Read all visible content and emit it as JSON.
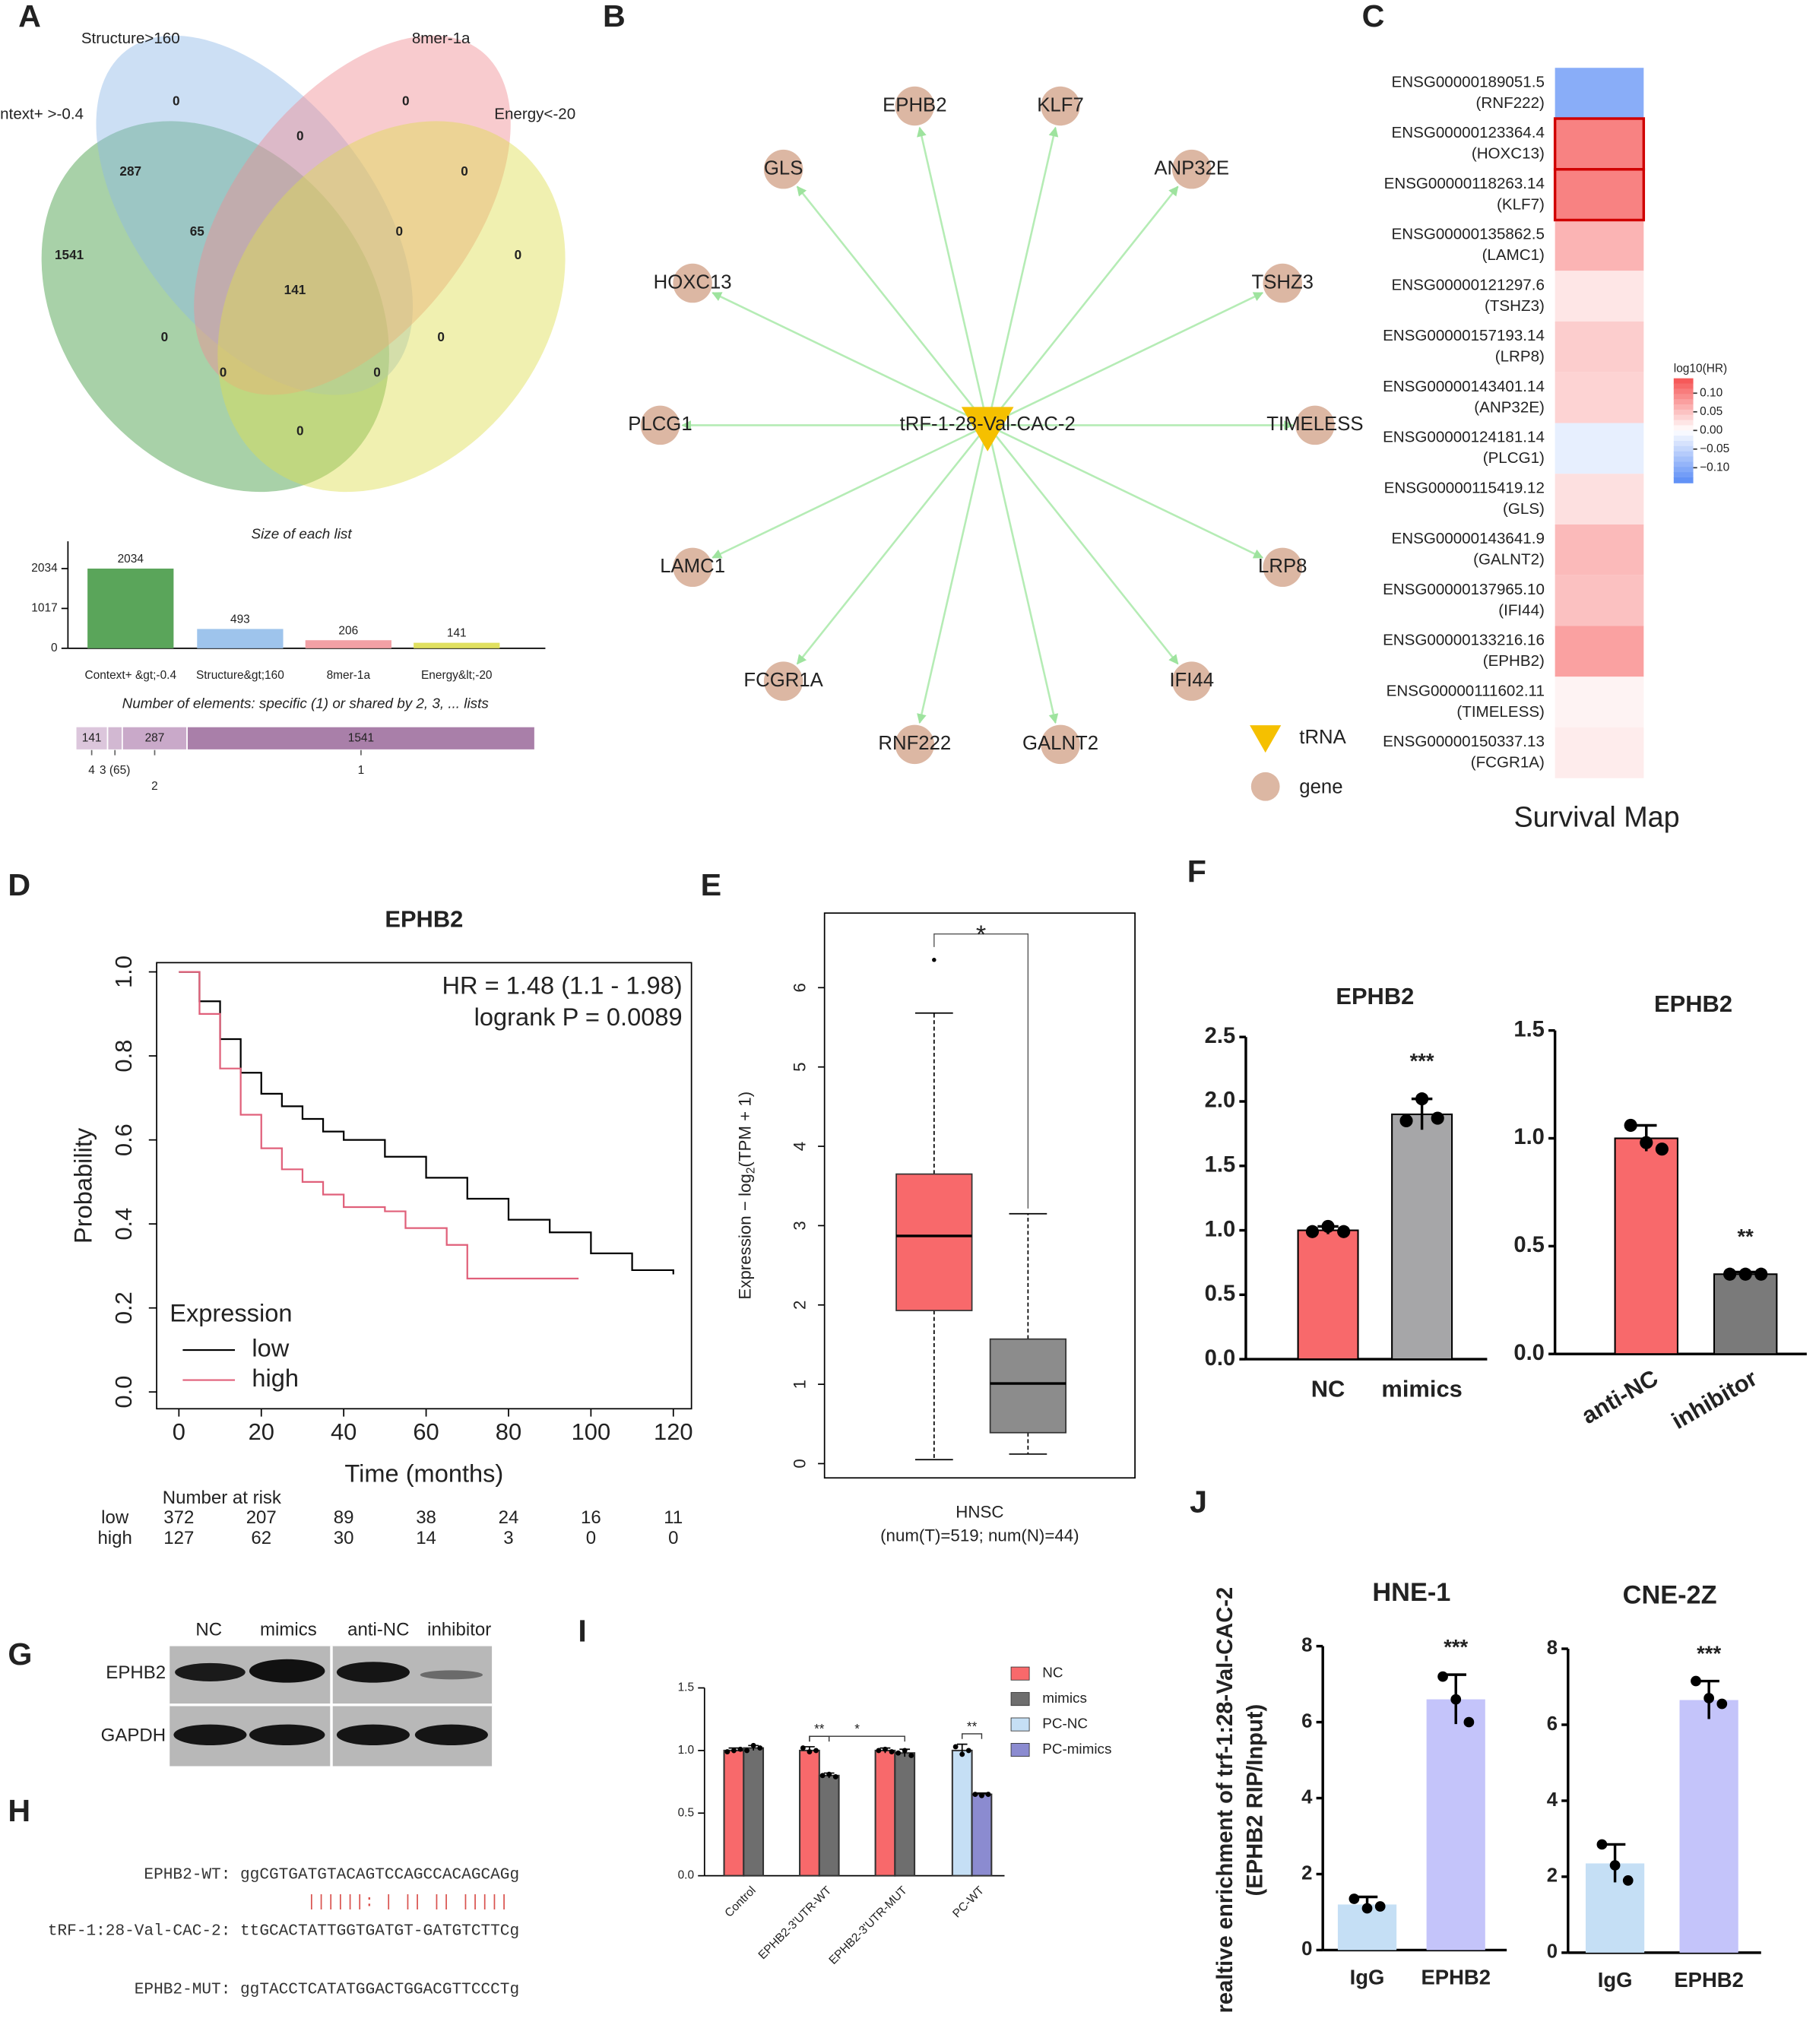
{
  "panel_labels": [
    "A",
    "B",
    "C",
    "D",
    "E",
    "F",
    "G",
    "H",
    "I",
    "J"
  ],
  "blot": {
    "lanes": [
      "NC",
      "mimics",
      "anti-NC",
      "inhibitor"
    ],
    "rows": [
      "EPHB2",
      "GAPDH"
    ]
  },
  "sequence": {
    "wt": "EPHB2-WT: ggCGTGATGTACAGTCCAGCCACAGCAGg",
    "pairing": "||||||:   |  ||  ||  |||||",
    "trf": "tRF-1:28-Val-CAC-2: ttGCACTATTGGTGATGT-GATGTCTTCg",
    "mut": "EPHB2-MUT: ggTACCTCATATGGACTGGACGTTCCCTg"
  },
  "chart_data": [
    {
      "type": "venn",
      "sets": [
        {
          "name": "ntext+ >-0.4",
          "color": "#3e9a3e"
        },
        {
          "name": "Structure>160",
          "color": "#8db8e6"
        },
        {
          "name": "8mer-1a",
          "color": "#ef8c92"
        },
        {
          "name": "Energy<-20",
          "color": "#dede50"
        }
      ],
      "regions": [
        0,
        0,
        0,
        0,
        287,
        65,
        0,
        0,
        1541,
        141,
        0,
        0,
        0,
        0,
        0
      ]
    },
    {
      "type": "bar",
      "title": "Size of each list",
      "categories": [
        "Context+ &gt;-0.4",
        "Structure&gt;160",
        "8mer-1a",
        "Energy&lt;-20"
      ],
      "series": [
        {
          "values": [
            2034,
            493,
            206,
            141
          ],
          "colors": [
            "#5aa55a",
            "#9ec4ec",
            "#f2a0a5",
            "#e0e060"
          ]
        }
      ],
      "show_values": true,
      "ylim": [
        0,
        2730
      ],
      "yticks": [
        0,
        1017,
        2034
      ]
    },
    {
      "type": "strip",
      "title": "Number of elements: specific (1) or shared by 2, 3, ... lists",
      "categories": [
        "4",
        "3 (65)",
        "2",
        "1"
      ],
      "values": [
        141,
        65,
        287,
        1541
      ],
      "colors": [
        "#dcc6dc",
        "#d2b8d2",
        "#c9a9c9",
        "#a97fa9"
      ]
    },
    {
      "type": "network",
      "center": "tRF-1-28-Val-CAC-2",
      "nodes": [
        "EPHB2",
        "KLF7",
        "ANP32E",
        "TSHZ3",
        "TIMELESS",
        "LRP8",
        "IFI44",
        "GALNT2",
        "RNF222",
        "FCGR1A",
        "LAMC1",
        "PLCG1",
        "HOXC13",
        "GLS"
      ],
      "legend": [
        "tRNA",
        "gene"
      ]
    },
    {
      "type": "heatmap",
      "title": "Survival Map",
      "colorbar_label": "log10(HR)",
      "rows": [
        {
          "id": "ENSG00000189051.5",
          "gene": "(RNF222)"
        },
        {
          "id": "ENSG00000123364.4",
          "gene": "(HOXC13)"
        },
        {
          "id": "ENSG00000118263.14",
          "gene": "(KLF7)"
        },
        {
          "id": "ENSG00000135862.5",
          "gene": "(LAMC1)"
        },
        {
          "id": "ENSG00000121297.6",
          "gene": "(TSHZ3)"
        },
        {
          "id": "ENSG00000157193.14",
          "gene": "(LRP8)"
        },
        {
          "id": "ENSG00000143401.14",
          "gene": "(ANP32E)"
        },
        {
          "id": "ENSG00000124181.14",
          "gene": "(PLCG1)"
        },
        {
          "id": "ENSG00000115419.12",
          "gene": "(GLS)"
        },
        {
          "id": "ENSG00000143641.9",
          "gene": "(GALNT2)"
        },
        {
          "id": "ENSG00000137965.10",
          "gene": "(IFI44)"
        },
        {
          "id": "ENSG00000133216.16",
          "gene": "(EPHB2)"
        },
        {
          "id": "ENSG00000111602.11",
          "gene": "(TIMELESS)"
        },
        {
          "id": "ENSG00000150337.13",
          "gene": "(FCGR1A)"
        }
      ],
      "values": [
        -0.1,
        0.1,
        0.1,
        0.06,
        0.02,
        0.04,
        0.035,
        -0.02,
        0.025,
        0.055,
        0.05,
        0.075,
        0.01,
        0.015
      ],
      "highlight": [
        1,
        2
      ],
      "clim": [
        -0.14,
        0.14
      ],
      "cticks": [
        {
          "value": 0.1,
          "label": "0.10"
        },
        0.05,
        {
          "value": 0,
          "label": "0.00"
        },
        {
          "value": -0.05,
          "label": "−0.05"
        },
        {
          "value": -0.1,
          "label": "−0.10"
        }
      ]
    },
    {
      "type": "survival",
      "title": "EPHB2",
      "xlabel": "Time (months)",
      "ylabel": "Probability",
      "annotations": [
        "HR = 1.48 (1.1 - 1.98)",
        "logrank P = 0.0089"
      ],
      "legend_title": "Expression",
      "series": [
        {
          "name": "low",
          "color": "#000000",
          "x": [
            0,
            5,
            10,
            15,
            20,
            25,
            30,
            35,
            40,
            50,
            60,
            70,
            80,
            90,
            100,
            110,
            120
          ],
          "values": [
            1.0,
            0.93,
            0.84,
            0.76,
            0.71,
            0.68,
            0.65,
            0.62,
            0.6,
            0.56,
            0.51,
            0.46,
            0.41,
            0.38,
            0.33,
            0.29,
            0.28
          ]
        },
        {
          "name": "high",
          "color": "#e0607a",
          "x": [
            0,
            5,
            10,
            15,
            20,
            25,
            30,
            35,
            40,
            50,
            55,
            65,
            70,
            97
          ],
          "values": [
            1.0,
            0.9,
            0.77,
            0.66,
            0.58,
            0.53,
            0.5,
            0.47,
            0.44,
            0.43,
            0.39,
            0.35,
            0.27,
            0.27
          ]
        }
      ],
      "xlim": [
        -5.4,
        124.4
      ],
      "xticks": [
        0,
        20,
        40,
        60,
        80,
        100,
        120
      ],
      "ylim": [
        -0.04,
        1.022
      ],
      "yticks": [
        {
          "value": 0,
          "label": "0.0"
        },
        0.2,
        0.4,
        0.6,
        0.8,
        {
          "value": 1,
          "label": "1.0"
        }
      ],
      "risk_table": {
        "title": "Number at risk",
        "rows": [
          {
            "name": "low",
            "color": "#333333",
            "values": [
              372,
              207,
              89,
              38,
              24,
              16,
              11
            ]
          },
          {
            "name": "high",
            "color": "#e0607a",
            "values": [
              127,
              62,
              30,
              14,
              3,
              0,
              0
            ]
          }
        ]
      }
    },
    {
      "type": "box",
      "ylabel": [
        "Expression − log",
        "2",
        "(TPM + 1)"
      ],
      "xlabel": [
        "HNSC",
        "(num(T)=519; num(N)=44)"
      ],
      "significance": "*",
      "boxes": [
        {
          "color": "#f8696b",
          "whislo": 0.05,
          "q1": 1.93,
          "median": 2.87,
          "q3": 3.65,
          "whishi": 5.68,
          "fliers": [
            6.35
          ]
        },
        {
          "color": "#8c8c8c",
          "whislo": 0.12,
          "q1": 0.39,
          "median": 1.01,
          "q3": 1.57,
          "whishi": 3.15,
          "fliers": []
        }
      ],
      "ylim": [
        -0.18,
        6.94
      ],
      "yticks": [
        0,
        1,
        2,
        3,
        4,
        5,
        6
      ]
    },
    {
      "type": "bar",
      "title": "EPHB2",
      "categories": [
        "NC",
        "mimics"
      ],
      "series": [
        {
          "values": [
            1.0,
            1.9
          ],
          "errors": [
            0.03,
            0.12
          ],
          "colors": [
            "#f8696b",
            "#a6a6a8"
          ],
          "points": [
            [
              0.99,
              1.03,
              0.99
            ],
            [
              1.85,
              2.02,
              1.87
            ]
          ]
        }
      ],
      "significance": [
        {
          "text": "***",
          "bars": [
            [
              1,
              0
            ]
          ]
        }
      ],
      "ylim": [
        0,
        2.5
      ],
      "yticks": [
        {
          "value": 0,
          "label": "0.0"
        },
        0.5,
        {
          "value": 1,
          "label": "1.0"
        },
        1.5,
        {
          "value": 2,
          "label": "2.0"
        },
        2.5
      ]
    },
    {
      "type": "bar",
      "title": "EPHB2",
      "categories": [
        "anti-NC",
        "inhibitor"
      ],
      "series": [
        {
          "values": [
            1.0,
            0.37
          ],
          "errors": [
            0.06,
            0.01
          ],
          "colors": [
            "#f8696b",
            "#7a7a7a"
          ],
          "points": [
            [
              1.06,
              0.98,
              0.95
            ],
            [
              0.37,
              0.37,
              0.37
            ]
          ]
        }
      ],
      "significance": [
        {
          "text": "**",
          "bars": [
            [
              1,
              0
            ]
          ]
        }
      ],
      "ylim": [
        0,
        1.5
      ],
      "yticks": [
        {
          "value": 0,
          "label": "0.0"
        },
        0.5,
        {
          "value": 1,
          "label": "1.0"
        },
        1.5
      ]
    },
    {
      "type": "bar",
      "categories": [
        "Control",
        "EPHB2-3'UTR-WT",
        "EPHB2-3'UTR-MUT",
        "PC-WT"
      ],
      "legend": true,
      "series": [
        {
          "name": "NC",
          "color": "#f8696b",
          "values": [
            1.0,
            1.0,
            1.0,
            null
          ],
          "errors": [
            0.02,
            0.03,
            0.02,
            null
          ],
          "points": [
            [
              0.99,
              1.0,
              1.01
            ],
            [
              1.02,
              0.99,
              1.0
            ],
            [
              1.0,
              1.01,
              0.99
            ],
            null
          ]
        },
        {
          "name": "mimics",
          "color": "#6e6e6e",
          "values": [
            1.02,
            0.8,
            0.98,
            null
          ],
          "errors": [
            0.02,
            0.02,
            0.03,
            null
          ],
          "points": [
            [
              1.0,
              1.04,
              1.02
            ],
            [
              0.8,
              0.81,
              0.79
            ],
            [
              0.98,
              1.0,
              0.96
            ],
            null
          ]
        },
        {
          "name": "PC-NC",
          "color": "#c5dff5",
          "values": [
            null,
            null,
            null,
            1.0
          ],
          "errors": [
            null,
            null,
            null,
            0.05
          ],
          "points": [
            null,
            null,
            null,
            [
              1.03,
              0.97,
              1.0
            ]
          ]
        },
        {
          "name": "PC-mimics",
          "color": "#8b8bd0",
          "values": [
            null,
            null,
            null,
            0.65
          ],
          "errors": [
            null,
            null,
            null,
            0.01
          ],
          "points": [
            null,
            null,
            null,
            [
              0.65,
              0.64,
              0.65
            ]
          ]
        }
      ],
      "significance": [
        {
          "text": "**",
          "bars": [
            [
              1,
              0
            ],
            [
              1,
              1
            ]
          ]
        },
        {
          "text": "*",
          "bars": [
            [
              1,
              0
            ],
            [
              2,
              1
            ]
          ]
        },
        {
          "text": "**",
          "bars": [
            [
              3,
              2
            ],
            [
              3,
              3
            ]
          ]
        }
      ],
      "ylim": [
        0,
        1.5
      ],
      "yticks": [
        {
          "value": 0,
          "label": "0.0"
        },
        0.5,
        {
          "value": 1,
          "label": "1.0"
        },
        1.5
      ]
    },
    {
      "type": "bar",
      "title": "HNE-1",
      "ylabel": [
        "realtive enrichment of trf-1:28-Val-CAC-2",
        "(EPHB2 RIP/Input)"
      ],
      "categories": [
        "IgG",
        "EPHB2"
      ],
      "series": [
        {
          "values": [
            1.2,
            6.6
          ],
          "errors": [
            0.2,
            0.65
          ],
          "colors": [
            "#c5dff5",
            "#c4c4fa"
          ],
          "points": [
            [
              1.35,
              1.1,
              1.15
            ],
            [
              7.2,
              6.6,
              6.0
            ]
          ]
        }
      ],
      "significance": [
        {
          "text": "***",
          "bars": [
            [
              1,
              0
            ]
          ]
        }
      ],
      "ylim": [
        0,
        8
      ],
      "yticks": [
        0,
        2,
        4,
        6,
        8
      ]
    },
    {
      "type": "bar",
      "title": "CNE-2Z",
      "categories": [
        "IgG",
        "EPHB2"
      ],
      "series": [
        {
          "values": [
            2.35,
            6.65
          ],
          "errors": [
            0.5,
            0.5
          ],
          "colors": [
            "#c5dff5",
            "#c4c4fa"
          ],
          "points": [
            [
              2.85,
              2.3,
              1.9
            ],
            [
              7.15,
              6.7,
              6.55
            ]
          ]
        }
      ],
      "significance": [
        {
          "text": "***",
          "bars": [
            [
              1,
              0
            ]
          ]
        }
      ],
      "ylim": [
        0,
        8
      ],
      "yticks": [
        0,
        2,
        4,
        6,
        8
      ]
    }
  ]
}
